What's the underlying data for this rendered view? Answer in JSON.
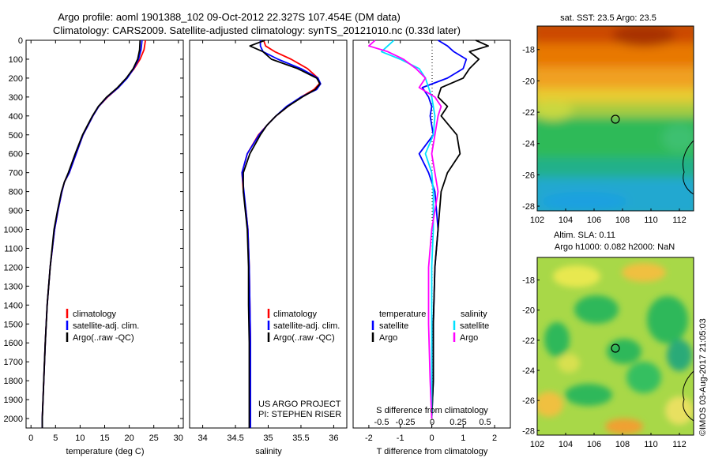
{
  "header": {
    "line1": "Argo profile: aoml 1901388_102 09-Oct-2012 22.327S 107.454E (DM data)",
    "line2": "Climatology: CARS2009. Satellite-adjusted climatology: synTS_20121010.nc (0.33d later)"
  },
  "colors": {
    "climatology": "#ff0000",
    "satellite": "#0000ff",
    "argo": "#000000",
    "sat_salinity": "#00e0ff",
    "argo_salinity": "#ff00ff"
  },
  "chart_data": [
    {
      "id": "temperature",
      "type": "line",
      "xlabel": "temperature (deg C)",
      "ylabel": "",
      "xlim": [
        -1,
        31
      ],
      "ylim": [
        2050,
        0
      ],
      "xticks": [
        0,
        5,
        10,
        15,
        20,
        25,
        30
      ],
      "yticks": [
        0,
        100,
        200,
        300,
        400,
        500,
        600,
        700,
        800,
        900,
        1000,
        1100,
        1200,
        1300,
        1400,
        1500,
        1600,
        1700,
        1800,
        1900,
        2000
      ],
      "depth": [
        0,
        50,
        100,
        150,
        200,
        250,
        300,
        350,
        400,
        450,
        500,
        600,
        700,
        750,
        800,
        900,
        1000,
        1200,
        1400,
        1600,
        1800,
        2000,
        2050
      ],
      "series": [
        {
          "name": "climatology",
          "color": "#ff0000",
          "values": [
            23.3,
            23.0,
            22.2,
            21.0,
            19.5,
            17.8,
            15.6,
            13.8,
            12.6,
            11.6,
            10.6,
            9.2,
            7.8,
            6.8,
            6.3,
            5.5,
            4.8,
            3.9,
            3.3,
            2.9,
            2.6,
            2.3,
            2.3
          ]
        },
        {
          "name": "satellite-adj. clim.",
          "color": "#0000ff",
          "values": [
            22.6,
            22.4,
            21.9,
            20.9,
            19.6,
            17.8,
            15.5,
            13.8,
            12.6,
            11.6,
            10.6,
            9.2,
            7.8,
            6.8,
            6.3,
            5.5,
            4.8,
            3.9,
            3.3,
            2.9,
            2.6,
            2.3,
            2.3
          ]
        },
        {
          "name": "Argo(..raw -QC)",
          "color": "#000000",
          "values": [
            22.2,
            22.1,
            21.7,
            20.8,
            19.4,
            17.6,
            15.4,
            13.7,
            12.5,
            11.5,
            10.5,
            9.0,
            7.6,
            6.8,
            6.2,
            5.4,
            4.7,
            3.9,
            3.3,
            2.9,
            2.6,
            2.3,
            2.3
          ]
        }
      ],
      "legend": [
        "climatology",
        "satellite-adj. clim.",
        "Argo(..raw -QC)"
      ]
    },
    {
      "id": "salinity",
      "type": "line",
      "xlabel": "salinity",
      "xlim": [
        33.8,
        36.2
      ],
      "ylim": [
        2050,
        0
      ],
      "xticks": [
        34,
        34.5,
        35,
        35.5,
        36
      ],
      "xticklabels": [
        "34",
        "34.5",
        "35",
        "35.5",
        "36"
      ],
      "depth": [
        0,
        30,
        60,
        100,
        150,
        200,
        230,
        260,
        300,
        350,
        400,
        450,
        500,
        600,
        700,
        800,
        900,
        1000,
        1200,
        1400,
        1600,
        1800,
        2000,
        2050
      ],
      "series": [
        {
          "name": "climatology",
          "color": "#ff0000",
          "values": [
            34.93,
            34.96,
            35.1,
            35.35,
            35.6,
            35.76,
            35.78,
            35.7,
            35.5,
            35.3,
            35.12,
            34.98,
            34.85,
            34.68,
            34.6,
            34.62,
            34.66,
            34.69,
            34.71,
            34.72,
            34.73,
            34.73,
            34.73,
            34.73
          ]
        },
        {
          "name": "satellite-adj. clim.",
          "color": "#0000ff",
          "values": [
            34.88,
            34.88,
            34.92,
            35.15,
            35.5,
            35.76,
            35.8,
            35.74,
            35.5,
            35.28,
            35.12,
            34.98,
            34.86,
            34.68,
            34.6,
            34.63,
            34.66,
            34.69,
            34.71,
            34.72,
            34.73,
            34.73,
            34.73,
            34.73
          ]
        },
        {
          "name": "Argo(..raw -QC)",
          "color": "#000000",
          "values": [
            34.95,
            34.72,
            34.92,
            35.05,
            35.45,
            35.74,
            35.79,
            35.72,
            35.52,
            35.3,
            35.12,
            34.98,
            34.88,
            34.72,
            34.62,
            34.62,
            34.65,
            34.68,
            34.7,
            34.7,
            34.71,
            34.71,
            34.71,
            34.71
          ]
        }
      ],
      "legend": [
        "climatology",
        "satellite-adj. clim.",
        "Argo(..raw -QC)"
      ],
      "annotations": [
        "US ARGO PROJECT",
        "PI: STEPHEN RISER"
      ]
    },
    {
      "id": "difference",
      "type": "line",
      "xlabel": "T difference from climatology",
      "xlabel_top": "S difference from climatology",
      "xlim": [
        -2.5,
        2.5
      ],
      "ylim": [
        2050,
        0
      ],
      "xticks": [
        -2,
        -1,
        0,
        1,
        2
      ],
      "xticklabels": [
        "-2",
        "-1",
        "0",
        "1",
        "2"
      ],
      "s_ticklabels": [
        "-0.5",
        "-0.25",
        "0",
        "0.25",
        "0.5"
      ],
      "depth": [
        0,
        30,
        60,
        100,
        150,
        200,
        250,
        300,
        350,
        400,
        500,
        600,
        700,
        800,
        1000,
        1200,
        1500,
        1800,
        2000
      ],
      "series": [
        {
          "name": "temperature satellite",
          "color": "#0000ff",
          "values": [
            0.2,
            0.5,
            0.7,
            1.1,
            1.0,
            0.5,
            -0.3,
            -0.1,
            0,
            -0.05,
            0.05,
            -0.4,
            -0.1,
            0.1,
            0.2,
            0.1,
            0.05,
            0.05,
            0
          ]
        },
        {
          "name": "temperature Argo",
          "color": "#000000",
          "values": [
            1.4,
            1.8,
            1.2,
            1.5,
            1.2,
            1.0,
            0.3,
            0.2,
            0.5,
            0.3,
            0.8,
            0.9,
            0.5,
            0.3,
            0.2,
            0.1,
            0.05,
            0.05,
            0
          ]
        },
        {
          "name": "salinity satellite",
          "color": "#00e0ff",
          "values": [
            -1.2,
            -1.4,
            -1.6,
            -1.0,
            -0.4,
            -0.2,
            -0.1,
            0,
            0.05,
            0.1,
            0.05,
            -0.2,
            0,
            0.05,
            0.05,
            0,
            0,
            0,
            0
          ]
        },
        {
          "name": "salinity Argo",
          "color": "#ff00ff",
          "values": [
            -1.8,
            -2.0,
            -1.4,
            -0.9,
            -0.5,
            -0.2,
            -0.4,
            0.1,
            0.3,
            0.2,
            0.1,
            0.0,
            0.1,
            0.2,
            0.0,
            -0.1,
            -0.1,
            -0.05,
            0
          ]
        }
      ],
      "legend_headers": [
        "temperature",
        "salinity"
      ],
      "legend": [
        "satellite",
        "Argo",
        "satellite",
        "Argo"
      ]
    },
    {
      "id": "sst_map",
      "type": "heatmap",
      "title": "sat. SST: 23.5 Argo: 23.5",
      "xlim": [
        102,
        113
      ],
      "ylim": [
        -28.3,
        -16.5
      ],
      "xticks": [
        102,
        104,
        106,
        108,
        110,
        112
      ],
      "yticks": [
        -18,
        -20,
        -22,
        -24,
        -26,
        -28
      ],
      "marker": {
        "lon": 107.454,
        "lat": -22.327
      }
    },
    {
      "id": "sla_map",
      "type": "heatmap",
      "title": "Altim. SLA: 0.11",
      "subtitle": "Argo h1000: 0.082 h2000: NaN",
      "xlim": [
        102,
        113
      ],
      "ylim": [
        -28.3,
        -16.5
      ],
      "xticks": [
        102,
        104,
        106,
        108,
        110,
        112
      ],
      "yticks": [
        -18,
        -20,
        -22,
        -24,
        -26,
        -28
      ],
      "marker": {
        "lon": 107.454,
        "lat": -22.327
      }
    }
  ],
  "footer": {
    "credit": "©IMOS 03-Aug-2017 21:05:03"
  }
}
